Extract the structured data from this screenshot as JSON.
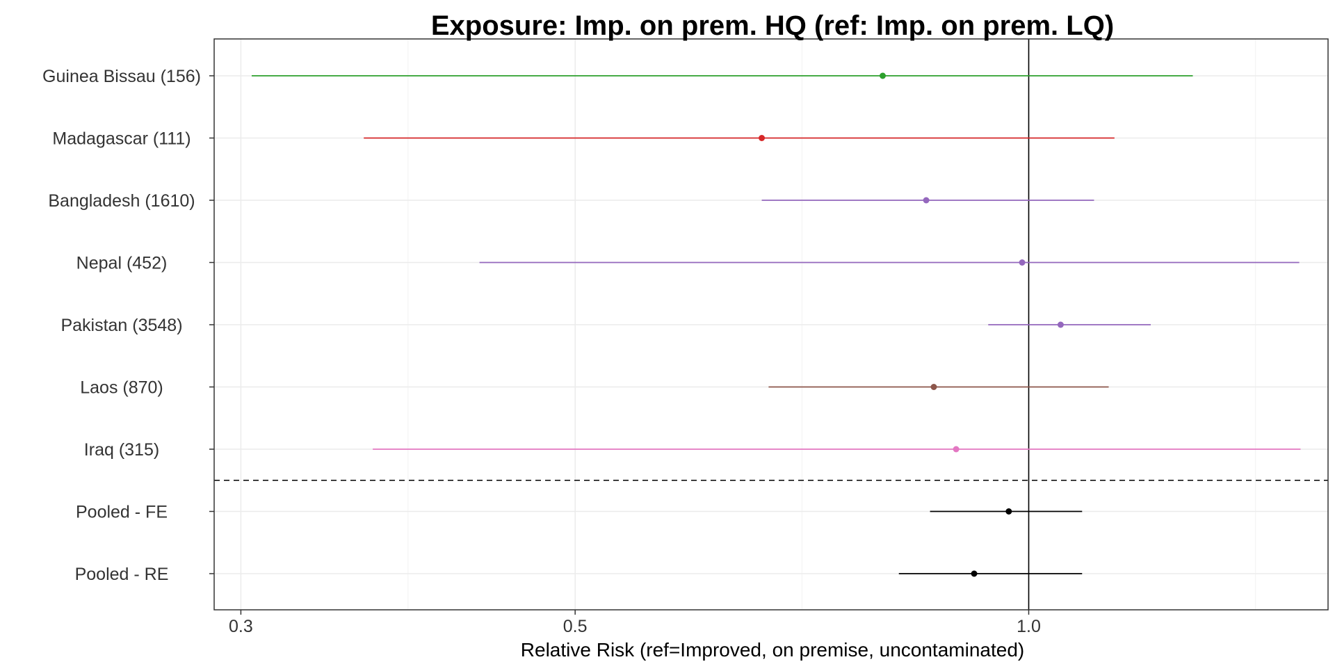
{
  "chart_data": {
    "type": "forest",
    "title": "Exposure: Imp. on prem. HQ (ref: Imp. on prem. LQ)",
    "xlabel": "Relative Risk (ref=Improved, on premise, uncontaminated)",
    "x_scale": "log",
    "xlim": [
      0.288,
      1.58
    ],
    "x_ticks": [
      {
        "value": 0.3,
        "label": "0.3"
      },
      {
        "value": 0.5,
        "label": "0.5"
      },
      {
        "value": 1.0,
        "label": "1.0"
      }
    ],
    "reference_line": 1.0,
    "grid": true,
    "separator_after_row": 7,
    "rows": [
      {
        "label": "Guinea Bissau (156)",
        "estimate": 0.8,
        "lower": 0.305,
        "upper": 1.285,
        "color": "#2ca02c"
      },
      {
        "label": "Madagascar (111)",
        "estimate": 0.665,
        "lower": 0.362,
        "upper": 1.14,
        "color": "#d62728"
      },
      {
        "label": "Bangladesh (1610)",
        "estimate": 0.855,
        "lower": 0.665,
        "upper": 1.105,
        "color": "#9467bd"
      },
      {
        "label": "Nepal (452)",
        "estimate": 0.99,
        "lower": 0.432,
        "upper": 1.512,
        "color": "#9467bd"
      },
      {
        "label": "Pakistan (3548)",
        "estimate": 1.05,
        "lower": 0.94,
        "upper": 1.205,
        "color": "#9467bd"
      },
      {
        "label": "Laos (870)",
        "estimate": 0.865,
        "lower": 0.672,
        "upper": 1.13,
        "color": "#8c564b"
      },
      {
        "label": "Iraq (315)",
        "estimate": 0.895,
        "lower": 0.367,
        "upper": 1.515,
        "color": "#e377c2"
      },
      {
        "label": "Pooled - FE",
        "estimate": 0.97,
        "lower": 0.86,
        "upper": 1.085,
        "color": "#000000"
      },
      {
        "label": "Pooled - RE",
        "estimate": 0.92,
        "lower": 0.82,
        "upper": 1.085,
        "color": "#000000"
      }
    ]
  }
}
